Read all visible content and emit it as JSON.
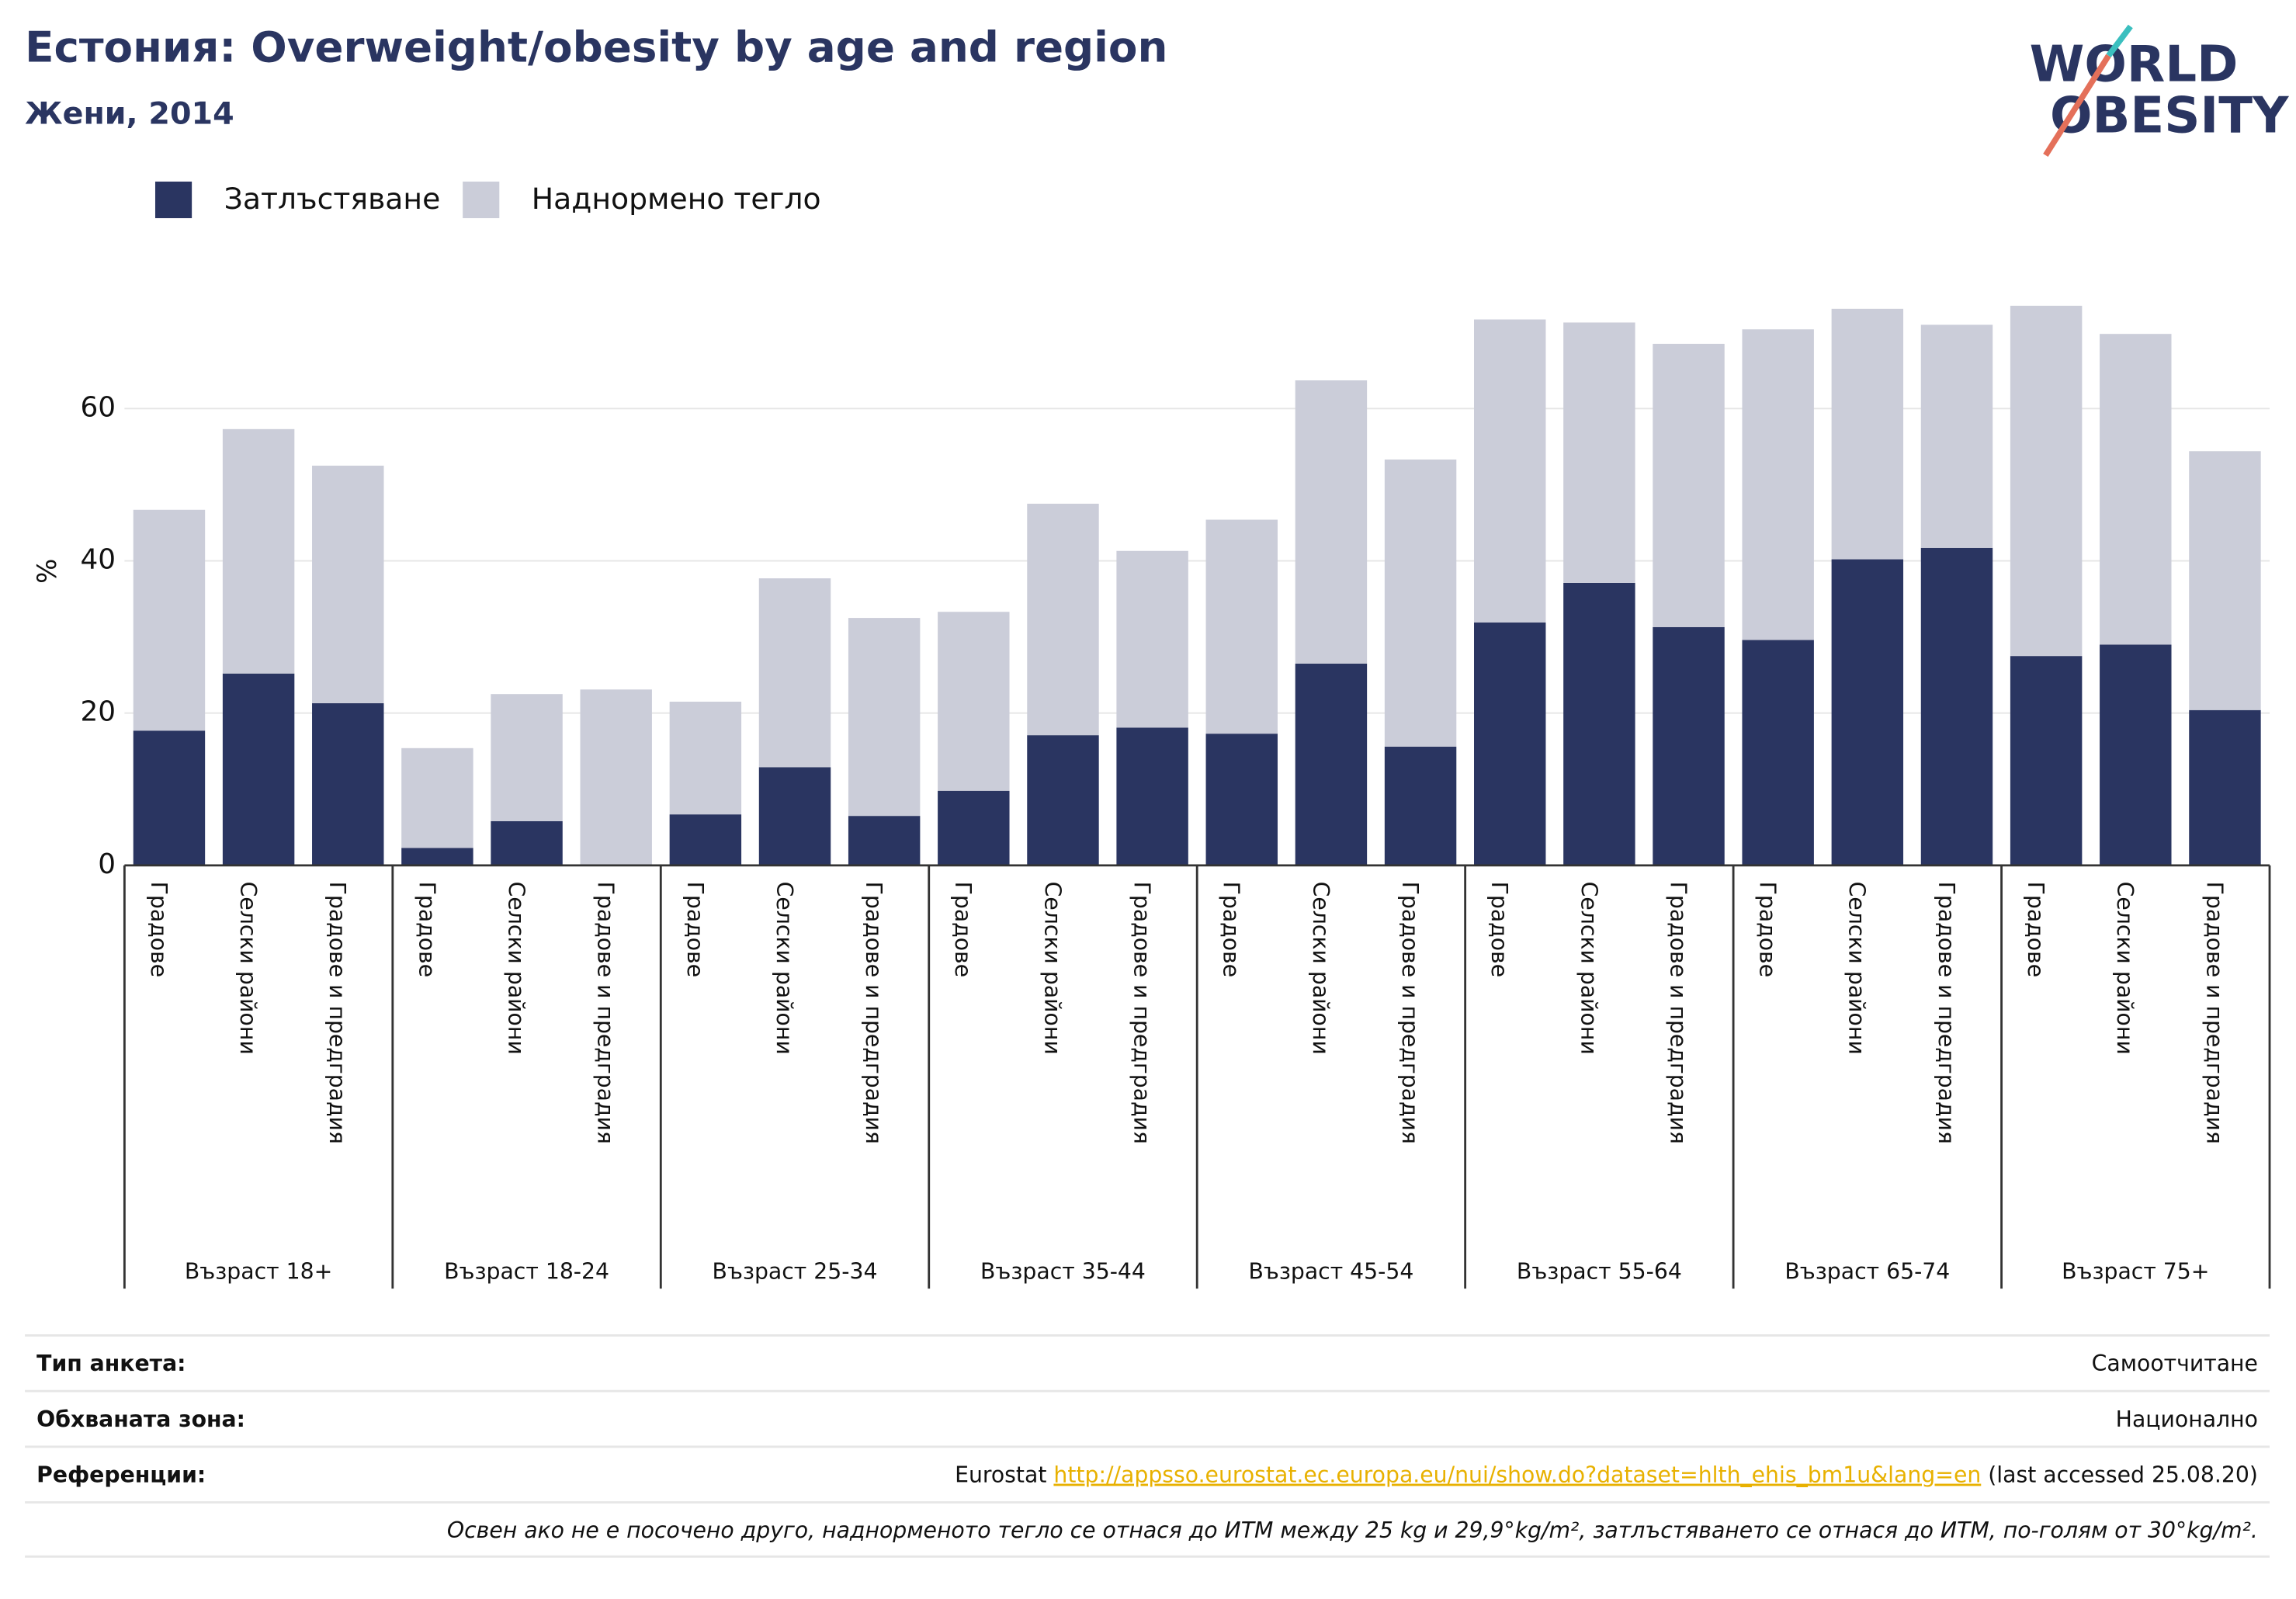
{
  "chart_data": {
    "type": "stacked_bar",
    "title": "Естония: Overweight/obesity by age and region",
    "subtitle": "Жени, 2014",
    "y_label": "%",
    "logo": [
      "WORLD",
      "OBESITY"
    ],
    "categories": [
      "Градове",
      "Селски райони",
      "Градове и предградия",
      "Градове",
      "Селски райони",
      "Градове и предградия",
      "Градове",
      "Селски райони",
      "Градове и предградия",
      "Градове",
      "Селски райони",
      "Градове и предградия",
      "Градове",
      "Селски райони",
      "Градове и предградия",
      "Градове",
      "Селски райони",
      "Градове и предградия",
      "Градове",
      "Селски райони",
      "Градове и предградия",
      "Градове",
      "Селски райони",
      "Градове и предградия"
    ],
    "groups": [
      "Възраст 18+",
      "Възраст 18-24",
      "Възраст 25-34",
      "Възраст 35-44",
      "Възраст 45-54",
      "Възраст 55-64",
      "Възраст 65-74",
      "Възраст 75+"
    ],
    "series": [
      {
        "name": "Затлъстяване",
        "color": "#2a3561",
        "values": [
          17.7,
          25.2,
          21.3,
          2.3,
          5.8,
          0,
          6.7,
          12.9,
          6.5,
          9.8,
          17.1,
          18.1,
          17.3,
          26.5,
          15.6,
          31.9,
          37.1,
          31.3,
          29.6,
          40.2,
          41.7,
          27.5,
          29.0,
          20.4
        ]
      },
      {
        "name": "Наднормено тегло",
        "color": "#cbcdd9",
        "values": [
          29.0,
          32.1,
          31.2,
          13.1,
          16.7,
          23.1,
          14.8,
          24.8,
          26.0,
          23.5,
          30.4,
          23.2,
          28.1,
          37.2,
          37.7,
          39.8,
          34.2,
          37.2,
          40.8,
          32.9,
          29.3,
          46.0,
          40.8,
          34.0
        ]
      }
    ],
    "ylim": [
      0,
      75
    ],
    "yticks": [
      0,
      20,
      40,
      60
    ],
    "grid": true,
    "legend": "top-left"
  },
  "footer": {
    "rows": [
      {
        "label": "Тип анкета:",
        "value": "Самоотчитане"
      },
      {
        "label": "Обхваната зона:",
        "value": "Национално"
      },
      {
        "label": "Референции:",
        "value": [
          "Eurostat ",
          "http://appsso.eurostat.ec.europa.eu/nui/show.do?dataset=hlth_ehis_bm1u&lang=en",
          " (last accessed 25.08.20)"
        ]
      }
    ],
    "note": "Освен ако не е посочено друго, наднорменото тегло се отнася до ИТМ между 25 kg и 29,9°kg/m², затлъстяването се отнася до ИТМ, по-голям от 30°kg/m²."
  }
}
